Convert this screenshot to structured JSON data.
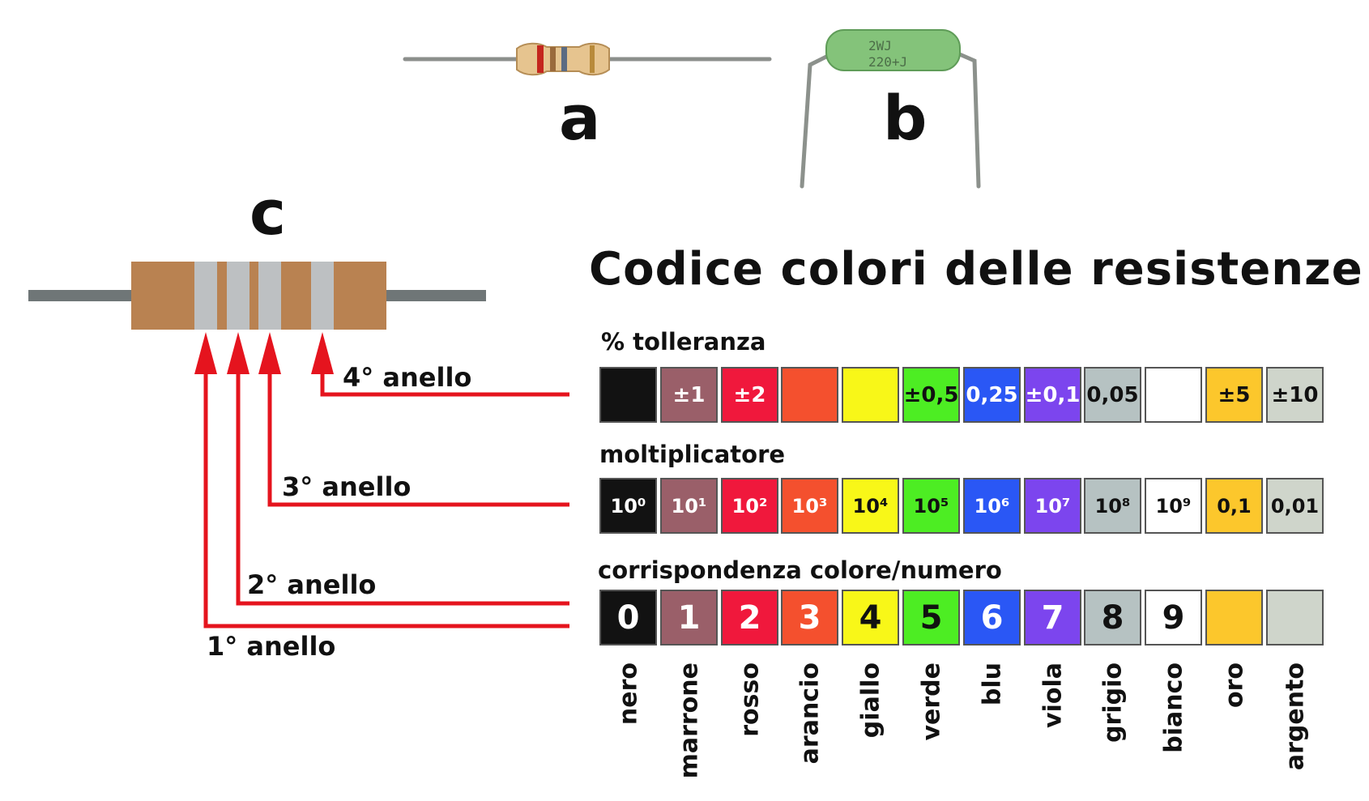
{
  "labels": {
    "a": "a",
    "b": "b",
    "c": "c"
  },
  "resistor_b_print": [
    "2WJ",
    "220+J"
  ],
  "title": "Codice colori delle resistenze",
  "rows": {
    "tolerance_label": "% tolleranza",
    "multiplier_label": "moltiplicatore",
    "digit_label": "corrispondenza colore/numero"
  },
  "rings": [
    "1° anello",
    "2° anello",
    "3° anello",
    "4° anello"
  ],
  "colors": [
    {
      "name": "nero",
      "hex": "#121212",
      "text": "#ffffff",
      "tolerance": "",
      "multiplier": "10⁰",
      "digit": "0"
    },
    {
      "name": "marrone",
      "hex": "#9a5f69",
      "text": "#ffffff",
      "tolerance": "±1",
      "multiplier": "10¹",
      "digit": "1"
    },
    {
      "name": "rosso",
      "hex": "#f0183c",
      "text": "#ffffff",
      "tolerance": "±2",
      "multiplier": "10²",
      "digit": "2"
    },
    {
      "name": "arancio",
      "hex": "#f4502e",
      "text": "#ffffff",
      "tolerance": "",
      "multiplier": "10³",
      "digit": "3"
    },
    {
      "name": "giallo",
      "hex": "#f8f718",
      "text": "#111111",
      "tolerance": "",
      "multiplier": "10⁴",
      "digit": "4"
    },
    {
      "name": "verde",
      "hex": "#4ded23",
      "text": "#111111",
      "tolerance": "±0,5",
      "multiplier": "10⁵",
      "digit": "5"
    },
    {
      "name": "blu",
      "hex": "#2a57f5",
      "text": "#ffffff",
      "tolerance": "0,25",
      "multiplier": "10⁶",
      "digit": "6"
    },
    {
      "name": "viola",
      "hex": "#7c45ee",
      "text": "#ffffff",
      "tolerance": "±0,1",
      "multiplier": "10⁷",
      "digit": "7"
    },
    {
      "name": "grigio",
      "hex": "#b6c2c2",
      "text": "#111111",
      "tolerance": "0,05",
      "multiplier": "10⁸",
      "digit": "8"
    },
    {
      "name": "bianco",
      "hex": "#ffffff",
      "text": "#111111",
      "tolerance": "",
      "multiplier": "10⁹",
      "digit": "9"
    },
    {
      "name": "oro",
      "hex": "#fcc72c",
      "text": "#111111",
      "tolerance": "±5",
      "multiplier": "0,1",
      "digit": ""
    },
    {
      "name": "argento",
      "hex": "#cfd5cb",
      "text": "#111111",
      "tolerance": "±10",
      "multiplier": "0,01",
      "digit": ""
    }
  ],
  "style": {
    "arrow_color": "#e5141e",
    "resistor_body_color": "#b98251",
    "band_color": "#bdc0c2",
    "lead_color": "#6f7677"
  }
}
